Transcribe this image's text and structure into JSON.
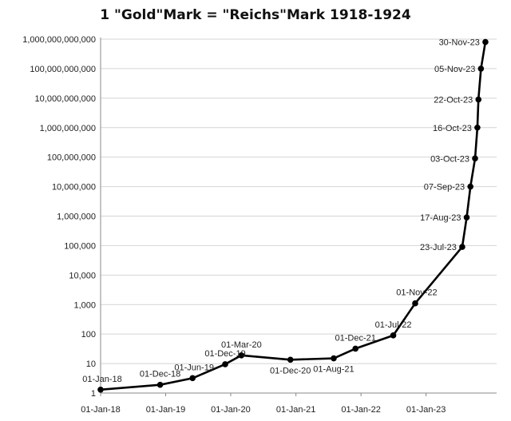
{
  "chart_data": {
    "type": "line",
    "title": "1 \"Gold\"Mark = \"Reichs\"Mark 1918-1924",
    "yscale": "log",
    "ylim": [
      1,
      1000000000000
    ],
    "y_ticks": [
      {
        "value": 1,
        "label": "1"
      },
      {
        "value": 10,
        "label": "10"
      },
      {
        "value": 100,
        "label": "100"
      },
      {
        "value": 1000,
        "label": "1,000"
      },
      {
        "value": 10000,
        "label": "10,000"
      },
      {
        "value": 100000,
        "label": "100,000"
      },
      {
        "value": 1000000,
        "label": "1,000,000"
      },
      {
        "value": 10000000,
        "label": "10,000,000"
      },
      {
        "value": 100000000,
        "label": "100,000,000"
      },
      {
        "value": 1000000000,
        "label": "1,000,000,000"
      },
      {
        "value": 10000000000,
        "label": "10,000,000,000"
      },
      {
        "value": 100000000000,
        "label": "100,000,000,000"
      },
      {
        "value": 1000000000000,
        "label": "1,000,000,000,000"
      }
    ],
    "xlim": [
      "1918-01-01",
      "1924-02-01"
    ],
    "x_ticks": [
      {
        "date": "1918-01-01",
        "label": "01-Jan-18"
      },
      {
        "date": "1919-01-01",
        "label": "01-Jan-19"
      },
      {
        "date": "1920-01-01",
        "label": "01-Jan-20"
      },
      {
        "date": "1921-01-01",
        "label": "01-Jan-21"
      },
      {
        "date": "1922-01-01",
        "label": "01-Jan-22"
      },
      {
        "date": "1923-01-01",
        "label": "01-Jan-23"
      }
    ],
    "grid": "horizontal",
    "points": [
      {
        "date": "1918-01-01",
        "value": 1.3,
        "label": "01-Jan-18",
        "pos": "above-right"
      },
      {
        "date": "1918-12-01",
        "value": 1.9,
        "label": "01-Dec-18",
        "pos": "above"
      },
      {
        "date": "1919-06-01",
        "value": 3.2,
        "label": "01-Jun-19",
        "pos": "above-right"
      },
      {
        "date": "1919-12-01",
        "value": 9.5,
        "label": "01-Dec-19",
        "pos": "above"
      },
      {
        "date": "1920-03-01",
        "value": 19,
        "label": "01-Mar-20",
        "pos": "above"
      },
      {
        "date": "1920-12-01",
        "value": 13.5,
        "label": "01-Dec-20",
        "pos": "below"
      },
      {
        "date": "1921-08-01",
        "value": 15,
        "label": "01-Aug-21",
        "pos": "below"
      },
      {
        "date": "1921-12-01",
        "value": 32,
        "label": "01-Dec-21",
        "pos": "above"
      },
      {
        "date": "1922-07-01",
        "value": 90,
        "label": "01-Jul-22",
        "pos": "above"
      },
      {
        "date": "1922-11-01",
        "value": 1100,
        "label": "01-Nov-22",
        "pos": "above-right"
      },
      {
        "date": "1923-07-23",
        "value": 90000,
        "label": "23-Jul-23",
        "pos": "left"
      },
      {
        "date": "1923-08-17",
        "value": 900000,
        "label": "17-Aug-23",
        "pos": "left"
      },
      {
        "date": "1923-09-07",
        "value": 10000000,
        "label": "07-Sep-23",
        "pos": "left"
      },
      {
        "date": "1923-10-03",
        "value": 90000000,
        "label": "03-Oct-23",
        "pos": "left"
      },
      {
        "date": "1923-10-16",
        "value": 1000000000,
        "label": "16-Oct-23",
        "pos": "left"
      },
      {
        "date": "1923-10-22",
        "value": 9000000000,
        "label": "22-Oct-23",
        "pos": "left"
      },
      {
        "date": "1923-11-05",
        "value": 100000000000,
        "label": "05-Nov-23",
        "pos": "left"
      },
      {
        "date": "1923-11-30",
        "value": 800000000000,
        "label": "30-Nov-23",
        "pos": "left"
      }
    ],
    "colors": {
      "line": "#000000",
      "grid": "#d4d4d4",
      "axis": "#888888",
      "text": "#222222"
    }
  }
}
